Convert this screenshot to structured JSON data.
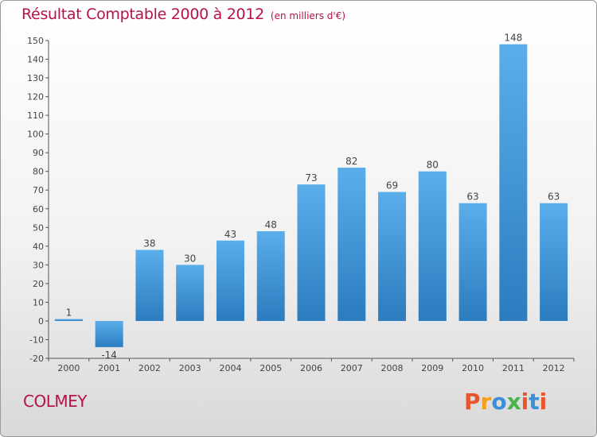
{
  "header": {
    "title": "Résultat Comptable 2000 à 2012",
    "subtitle": "(en milliers d'€)"
  },
  "footer": {
    "commune": "COLMEY",
    "logo_text": "Proxiti",
    "logo_colors": [
      "#e8542b",
      "#f2a01c",
      "#3a8fd6",
      "#4bb34b",
      "#e8542b",
      "#3a8fd6",
      "#e8542b"
    ]
  },
  "colors": {
    "title": "#b5124a",
    "bar_light": "#5aaeea",
    "bar_dark": "#2b7cbf",
    "axis": "#555555"
  },
  "chart_data": {
    "type": "bar",
    "categories": [
      "2000",
      "2001",
      "2002",
      "2003",
      "2004",
      "2005",
      "2006",
      "2007",
      "2008",
      "2009",
      "2010",
      "2011",
      "2012"
    ],
    "values": [
      1,
      -14,
      38,
      30,
      43,
      48,
      73,
      82,
      69,
      80,
      63,
      148,
      63
    ],
    "data_labels": [
      "1",
      "-14",
      "38",
      "30",
      "43",
      "48",
      "73",
      "82",
      "69",
      "80",
      "63",
      "148",
      "63"
    ],
    "ylim": [
      -20,
      150
    ],
    "yticks": [
      -20,
      -10,
      0,
      10,
      20,
      30,
      40,
      50,
      60,
      70,
      80,
      90,
      100,
      110,
      120,
      130,
      140,
      150
    ],
    "grid": false,
    "title": "Résultat Comptable 2000 à 2012",
    "xlabel": "",
    "ylabel": ""
  }
}
